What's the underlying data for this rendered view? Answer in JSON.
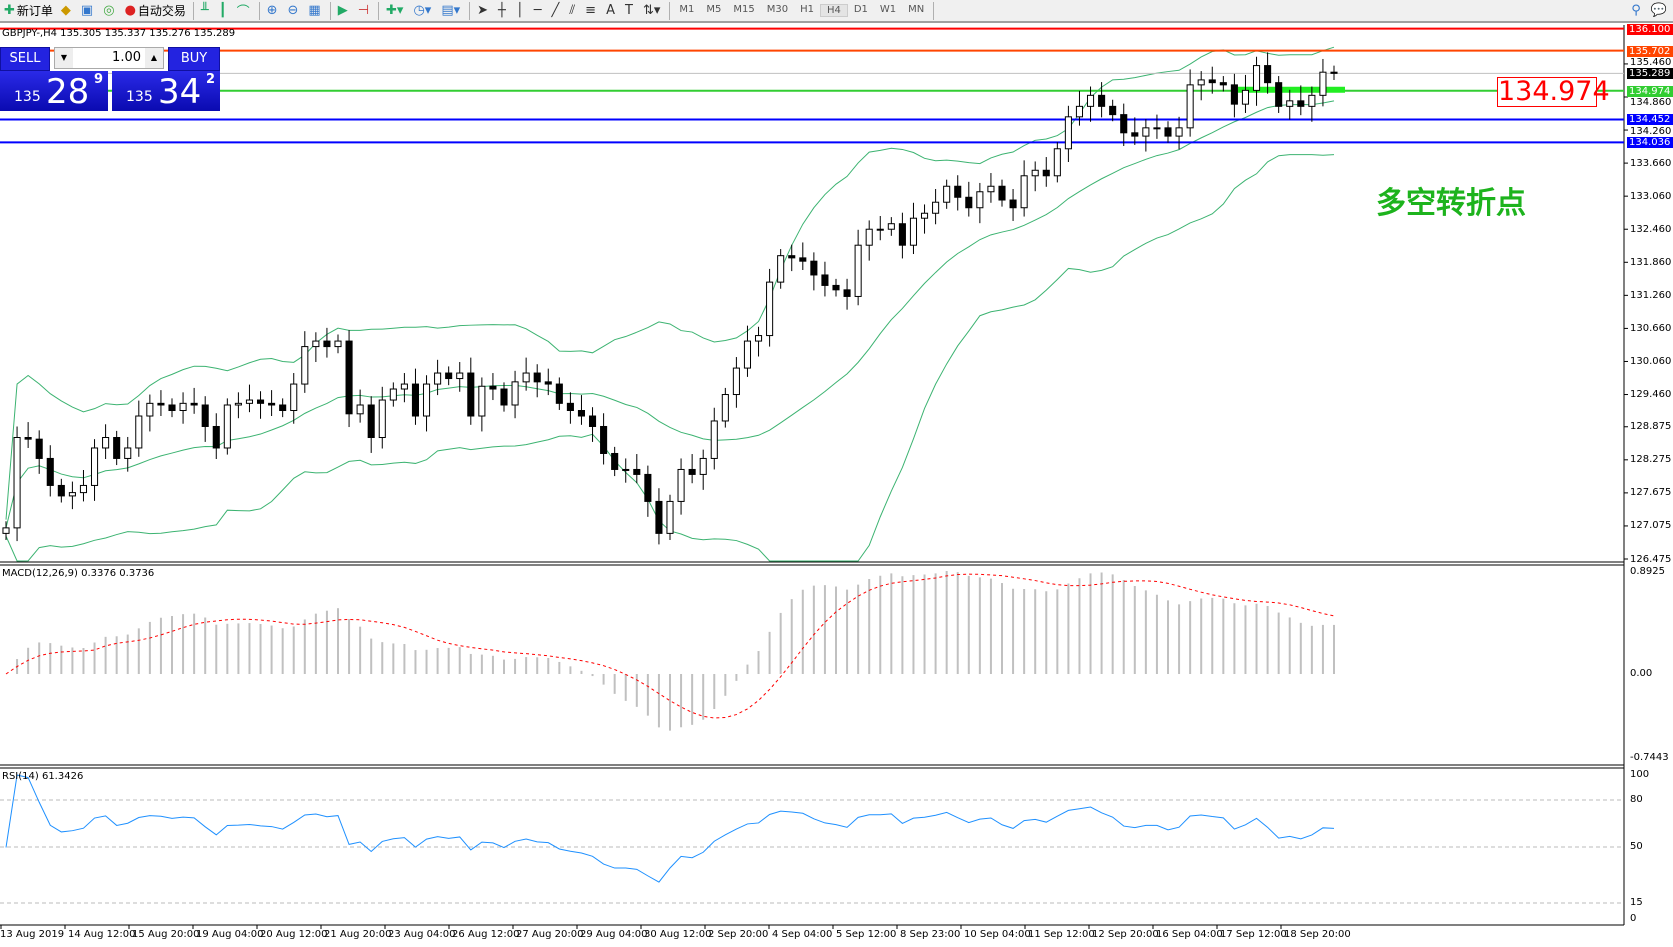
{
  "toolbar": {
    "new_order": "新订单",
    "auto_trading": "自动交易",
    "timeframes": [
      "M1",
      "M5",
      "M15",
      "M30",
      "H1",
      "H4",
      "D1",
      "W1",
      "MN"
    ],
    "active_timeframe": "H4"
  },
  "symbol_info": "GBPJPY-,H4  135.305 135.337 135.276 135.289",
  "trade_panel": {
    "sell_label": "SELL",
    "buy_label": "BUY",
    "lot": "1.00",
    "sell_big": "135",
    "sell_main": "28",
    "sell_pip": "9",
    "buy_big": "135",
    "buy_main": "34",
    "buy_pip": "2",
    "color": "#2323e0"
  },
  "annotation": {
    "price_box": "134.974",
    "text": "多空转折点",
    "text_color": "#1db31d"
  },
  "levels": [
    {
      "price": 136.1,
      "label": "136.100",
      "color": "#ff0000"
    },
    {
      "price": 135.702,
      "label": "135.702",
      "color": "#ff4500"
    },
    {
      "price": 135.289,
      "label": "135.289",
      "color": "#c0c0c0",
      "label_bg": "#000000"
    },
    {
      "price": 134.974,
      "label": "134.974",
      "color": "#32cd32"
    },
    {
      "price": 134.452,
      "label": "134.452",
      "color": "#0000ff"
    },
    {
      "price": 134.036,
      "label": "134.036",
      "color": "#0000ff"
    }
  ],
  "price_axis": [
    "135.460",
    "134.860",
    "134.260",
    "133.660",
    "133.060",
    "132.460",
    "131.860",
    "131.260",
    "130.660",
    "130.060",
    "129.460",
    "128.875",
    "128.275",
    "127.675",
    "127.075",
    "126.475"
  ],
  "macd": {
    "label": "MACD(12,26,9) 0.3376 0.3736",
    "max": "0.8925",
    "zero": "0.00",
    "min": "-0.7443"
  },
  "rsi": {
    "label": "RSI(14) 61.3426",
    "levels": [
      "100",
      "80",
      "50",
      "15",
      "0"
    ]
  },
  "time_axis": [
    "13 Aug 2019",
    "14 Aug 12:00",
    "15 Aug 20:00",
    "19 Aug 04:00",
    "20 Aug 12:00",
    "21 Aug 20:00",
    "23 Aug 04:00",
    "26 Aug 12:00",
    "27 Aug 20:00",
    "29 Aug 04:00",
    "30 Aug 12:00",
    "2 Sep 20:00",
    "4 Sep 04:00",
    "5 Sep 12:00",
    "8 Sep 23:00",
    "10 Sep 04:00",
    "11 Sep 12:00",
    "12 Sep 20:00",
    "16 Sep 04:00",
    "17 Sep 12:00",
    "18 Sep 20:00"
  ],
  "chart_data": {
    "type": "candlestick",
    "symbol": "GBPJPY",
    "timeframe": "H4",
    "ylim": [
      126.475,
      136.1
    ],
    "closes": [
      127.04,
      128.68,
      128.65,
      128.3,
      127.81,
      127.62,
      127.68,
      127.81,
      128.49,
      128.68,
      128.3,
      128.49,
      129.07,
      129.3,
      129.27,
      129.17,
      129.3,
      129.27,
      128.88,
      128.49,
      129.27,
      129.3,
      129.36,
      129.3,
      129.27,
      129.17,
      129.65,
      130.33,
      130.43,
      130.33,
      130.43,
      129.11,
      129.27,
      128.68,
      129.36,
      129.56,
      129.65,
      129.07,
      129.65,
      129.85,
      129.75,
      129.85,
      129.07,
      129.61,
      129.56,
      129.27,
      129.69,
      129.85,
      129.69,
      129.65,
      129.3,
      129.17,
      129.07,
      128.88,
      128.39,
      128.1,
      128.1,
      128.01,
      127.52,
      126.94,
      127.52,
      128.1,
      128.01,
      128.3,
      128.98,
      129.46,
      129.94,
      130.43,
      130.53,
      131.5,
      131.98,
      131.94,
      131.88,
      131.63,
      131.44,
      131.36,
      131.24,
      132.17,
      132.46,
      132.46,
      132.56,
      132.17,
      132.66,
      132.75,
      132.95,
      133.24,
      133.04,
      132.85,
      133.14,
      133.24,
      132.99,
      132.85,
      133.43,
      133.53,
      133.43,
      133.92,
      134.5,
      134.69,
      134.89,
      134.69,
      134.54,
      134.21,
      134.15,
      134.3,
      134.3,
      134.15,
      134.3,
      135.08,
      135.17,
      135.12,
      135.08,
      134.73,
      134.98,
      135.43,
      135.12,
      134.69,
      134.79,
      134.69,
      134.89,
      135.31,
      135.289
    ],
    "indicators": [
      "Bollinger Bands",
      "MACD(12,26,9)",
      "RSI(14)"
    ]
  }
}
